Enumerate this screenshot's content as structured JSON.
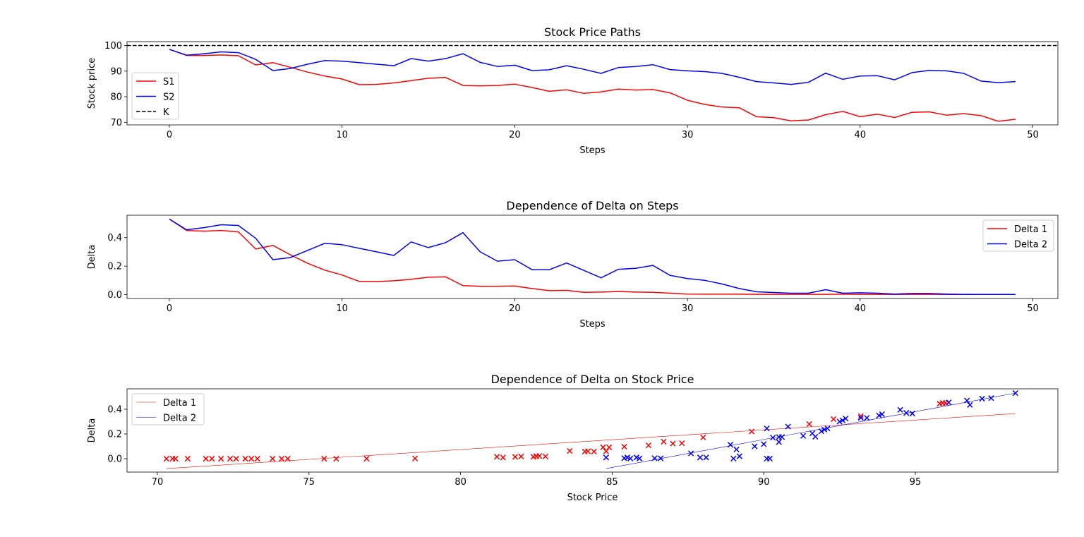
{
  "chart_data": [
    {
      "type": "line",
      "title": "Stock Price Paths",
      "xlabel": "Steps",
      "ylabel": "Stock price",
      "xlim": [
        -2.45,
        51.45
      ],
      "ylim": [
        69,
        101.5
      ],
      "xticks": [
        0,
        10,
        20,
        30,
        40,
        50
      ],
      "yticks": [
        70,
        80,
        90,
        100
      ],
      "legend_position": "center-left",
      "x": [
        0,
        1,
        2,
        3,
        4,
        5,
        6,
        7,
        8,
        9,
        10,
        11,
        12,
        13,
        14,
        15,
        16,
        17,
        18,
        19,
        20,
        21,
        22,
        23,
        24,
        25,
        26,
        27,
        28,
        29,
        30,
        31,
        32,
        33,
        34,
        35,
        36,
        37,
        38,
        39,
        40,
        41,
        42,
        43,
        44,
        45,
        46,
        47,
        48,
        49
      ],
      "series": [
        {
          "name": "S1",
          "color": "#ff0000",
          "style": "solid",
          "values": [
            98.5,
            96.1,
            96.1,
            96.3,
            96.0,
            92.4,
            93.3,
            91.5,
            89.6,
            88.1,
            86.9,
            84.7,
            84.8,
            85.4,
            86.3,
            87.2,
            87.5,
            84.4,
            84.2,
            84.4,
            84.9,
            83.6,
            82.1,
            82.7,
            81.3,
            81.9,
            83.0,
            82.6,
            82.8,
            81.5,
            78.6,
            77.0,
            76.0,
            75.7,
            72.2,
            71.8,
            70.6,
            70.9,
            73.0,
            74.3,
            72.2,
            73.2,
            71.9,
            73.9,
            74.1,
            72.8,
            73.4,
            72.6,
            70.4,
            71.2
          ]
        },
        {
          "name": "S2",
          "color": "#0000ff",
          "style": "solid",
          "values": [
            98.5,
            96.2,
            96.8,
            97.5,
            97.2,
            94.6,
            90.2,
            91.0,
            92.7,
            94.1,
            93.9,
            93.3,
            92.7,
            92.1,
            94.9,
            93.9,
            94.9,
            96.8,
            93.4,
            91.8,
            92.3,
            90.2,
            90.5,
            92.1,
            90.7,
            89.1,
            91.4,
            91.8,
            92.5,
            90.6,
            90.1,
            89.8,
            89.1,
            87.6,
            85.9,
            85.4,
            84.8,
            85.6,
            89.2,
            86.8,
            88.1,
            88.2,
            86.6,
            89.4,
            90.3,
            90.1,
            89.1,
            86.1,
            85.5,
            85.9
          ]
        },
        {
          "name": "K",
          "color": "#000000",
          "style": "dashed",
          "hline": 100
        }
      ]
    },
    {
      "type": "line",
      "title": "Dependence of Delta on Steps",
      "xlabel": "Steps",
      "ylabel": "Delta",
      "xlim": [
        -2.45,
        51.45
      ],
      "ylim": [
        -0.027,
        0.557
      ],
      "xticks": [
        0,
        10,
        20,
        30,
        40,
        50
      ],
      "yticks": [
        0.0,
        0.2,
        0.4
      ],
      "ytick_labels": [
        "0.0",
        "0.2",
        "0.4"
      ],
      "legend_position": "top-right",
      "x": [
        0,
        1,
        2,
        3,
        4,
        5,
        6,
        7,
        8,
        9,
        10,
        11,
        12,
        13,
        14,
        15,
        16,
        17,
        18,
        19,
        20,
        21,
        22,
        23,
        24,
        25,
        26,
        27,
        28,
        29,
        30,
        31,
        32,
        33,
        34,
        35,
        36,
        37,
        38,
        39,
        40,
        41,
        42,
        43,
        44,
        45,
        46,
        47,
        48,
        49
      ],
      "series": [
        {
          "name": "Delta 1",
          "color": "#ff0000",
          "values": [
            0.53,
            0.45,
            0.445,
            0.45,
            0.44,
            0.32,
            0.345,
            0.28,
            0.22,
            0.172,
            0.138,
            0.093,
            0.092,
            0.097,
            0.108,
            0.122,
            0.125,
            0.063,
            0.058,
            0.058,
            0.06,
            0.043,
            0.028,
            0.03,
            0.016,
            0.018,
            0.022,
            0.018,
            0.016,
            0.01,
            0.004,
            0.003,
            0.003,
            0.003,
            0.002,
            0.002,
            0.002,
            0.002,
            0.002,
            0.003,
            0.002,
            0.002,
            0.001,
            0.002,
            0.002,
            0.001,
            0.001,
            0.001,
            0.001,
            0.001
          ]
        },
        {
          "name": "Delta 2",
          "color": "#0000ff",
          "values": [
            0.53,
            0.455,
            0.47,
            0.49,
            0.485,
            0.395,
            0.245,
            0.26,
            0.31,
            0.36,
            0.35,
            0.325,
            0.3,
            0.275,
            0.37,
            0.33,
            0.365,
            0.435,
            0.3,
            0.235,
            0.245,
            0.175,
            0.175,
            0.222,
            0.17,
            0.118,
            0.178,
            0.185,
            0.205,
            0.135,
            0.113,
            0.1,
            0.075,
            0.043,
            0.02,
            0.015,
            0.01,
            0.01,
            0.035,
            0.01,
            0.013,
            0.01,
            0.004,
            0.008,
            0.008,
            0.004,
            0.002,
            0.001,
            0.001,
            0.001
          ]
        }
      ]
    },
    {
      "type": "scatter",
      "title": "Dependence of Delta on Stock Price",
      "xlabel": "Stock Price",
      "ylabel": "Delta",
      "xlim": [
        69.0,
        99.7
      ],
      "ylim": [
        -0.108,
        0.565
      ],
      "xticks": [
        70,
        75,
        80,
        85,
        90,
        95
      ],
      "yticks": [
        0.0,
        0.2,
        0.4
      ],
      "ytick_labels": [
        "0.0",
        "0.2",
        "0.4"
      ],
      "legend_position": "top-left",
      "series": [
        {
          "name": "Delta 1",
          "color": "#ff0000",
          "fit": {
            "x": [
              70.3,
              98.3
            ],
            "y": [
              -0.08,
              0.365
            ]
          },
          "x": [
            70.3,
            70.6,
            71.0,
            70.5,
            71.6,
            72.1,
            71.8,
            72.4,
            72.6,
            72.9,
            73.1,
            73.3,
            73.8,
            74.1,
            74.3,
            75.5,
            75.9,
            76.9,
            78.5,
            81.2,
            81.4,
            81.8,
            82.0,
            82.4,
            82.5,
            82.6,
            82.8,
            83.6,
            84.1,
            84.2,
            84.4,
            84.7,
            84.8,
            84.9,
            85.4,
            86.2,
            86.7,
            87.0,
            87.3,
            88.0,
            89.6,
            91.5,
            92.3,
            93.2,
            95.8,
            95.9,
            96.0
          ],
          "y": [
            0.0,
            0.0,
            0.0,
            0.0,
            0.0,
            0.0,
            0.0,
            0.0,
            0.0,
            0.0,
            0.0,
            0.0,
            0.0,
            0.0,
            0.0,
            0.0,
            0.0,
            0.0,
            0.002,
            0.016,
            0.01,
            0.015,
            0.018,
            0.016,
            0.02,
            0.022,
            0.018,
            0.063,
            0.058,
            0.06,
            0.058,
            0.093,
            0.06,
            0.092,
            0.097,
            0.108,
            0.138,
            0.122,
            0.125,
            0.172,
            0.22,
            0.28,
            0.32,
            0.345,
            0.445,
            0.45,
            0.45
          ]
        },
        {
          "name": "Delta 2",
          "color": "#0000ff",
          "fit": {
            "x": [
              84.8,
              98.3
            ],
            "y": [
              -0.08,
              0.53
            ]
          },
          "x": [
            84.8,
            85.4,
            85.5,
            85.6,
            85.8,
            85.9,
            86.4,
            86.6,
            87.6,
            87.9,
            88.1,
            88.9,
            89.0,
            89.1,
            89.2,
            89.7,
            90.0,
            90.1,
            90.1,
            90.2,
            90.3,
            90.5,
            90.5,
            90.6,
            90.8,
            91.3,
            91.6,
            91.7,
            91.9,
            92.0,
            92.1,
            92.5,
            92.6,
            92.7,
            93.2,
            93.4,
            93.8,
            93.9,
            94.5,
            94.7,
            94.9,
            96.1,
            96.7,
            96.8,
            97.2,
            97.5,
            98.3
          ],
          "y": [
            0.01,
            0.004,
            0.01,
            0.002,
            0.01,
            0.002,
            0.004,
            0.003,
            0.043,
            0.01,
            0.01,
            0.113,
            0.001,
            0.075,
            0.02,
            0.1,
            0.118,
            0.245,
            0.001,
            0.001,
            0.17,
            0.175,
            0.135,
            0.175,
            0.26,
            0.185,
            0.205,
            0.178,
            0.222,
            0.235,
            0.245,
            0.3,
            0.31,
            0.325,
            0.33,
            0.33,
            0.35,
            0.36,
            0.395,
            0.37,
            0.365,
            0.455,
            0.47,
            0.435,
            0.485,
            0.49,
            0.53
          ]
        }
      ]
    }
  ]
}
